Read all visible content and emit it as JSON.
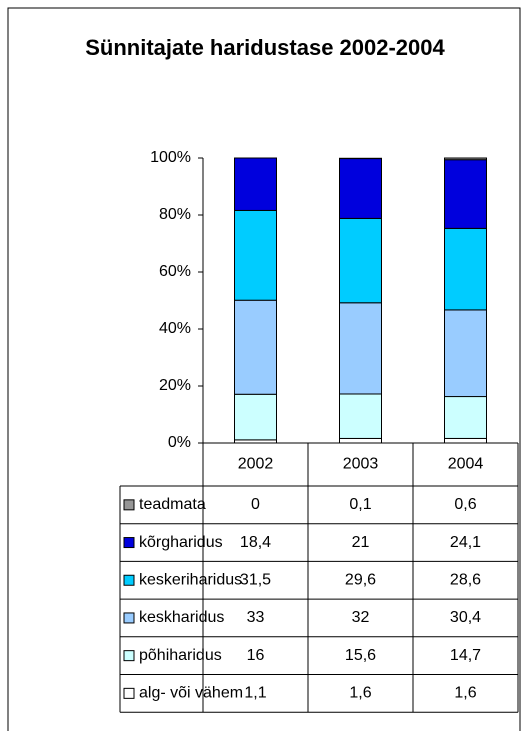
{
  "chart_data": {
    "type": "stacked_bar",
    "title": "Sünnitajate haridustase 2002-2004",
    "categories": [
      "2002",
      "2003",
      "2004"
    ],
    "series": [
      {
        "name": "teadmata",
        "color": "#969696",
        "values": [
          0,
          0.1,
          0.6
        ],
        "value_labels": [
          "0",
          "0,1",
          "0,6"
        ]
      },
      {
        "name": "kõrgharidus",
        "color": "#0000dd",
        "values": [
          18.4,
          21,
          24.1
        ],
        "value_labels": [
          "18,4",
          "21",
          "24,1"
        ]
      },
      {
        "name": "keskeriharidus",
        "color": "#00ccff",
        "values": [
          31.5,
          29.6,
          28.6
        ],
        "value_labels": [
          "31,5",
          "29,6",
          "28,6"
        ]
      },
      {
        "name": "keskharidus",
        "color": "#99ccff",
        "values": [
          33,
          32,
          30.4
        ],
        "value_labels": [
          "33",
          "32",
          "30,4"
        ]
      },
      {
        "name": "põhiharidus",
        "color": "#ccffff",
        "values": [
          16,
          15.6,
          14.7
        ],
        "value_labels": [
          "16",
          "15,6",
          "14,7"
        ]
      },
      {
        "name": "alg- või vähem",
        "color": "#ffffff",
        "values": [
          1.1,
          1.6,
          1.6
        ],
        "value_labels": [
          "1,1",
          "1,6",
          "1,6"
        ]
      }
    ],
    "ylim": [
      0,
      100
    ],
    "yticks": [
      {
        "value": 0,
        "label": "0%"
      },
      {
        "value": 20,
        "label": "20%"
      },
      {
        "value": 40,
        "label": "40%"
      },
      {
        "value": 60,
        "label": "60%"
      },
      {
        "value": 80,
        "label": "80%"
      },
      {
        "value": 100,
        "label": "100%"
      }
    ]
  }
}
